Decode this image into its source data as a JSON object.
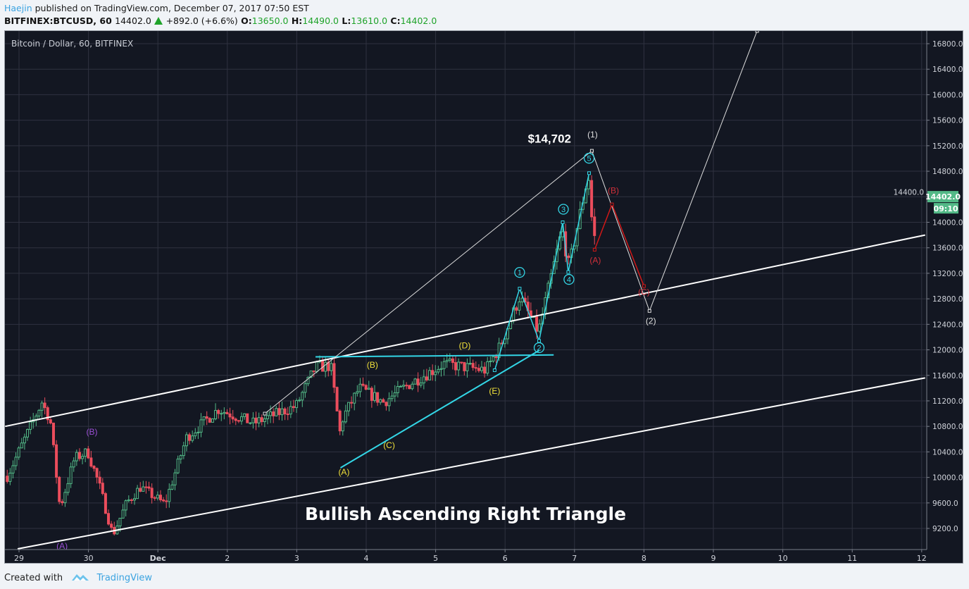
{
  "header": {
    "author": "Haejin",
    "published": " published on TradingView.com, December 07, 2017 07:50 EST",
    "symbol": "BITFINEX:BTCUSD, 60",
    "last": "14402.0",
    "change": "+892.0 (+6.6%)",
    "o_label": "O:",
    "o": "13650.0",
    "h_label": "H:",
    "h": "14490.0",
    "l_label": "L:",
    "l": "13610.0",
    "c_label": "C:",
    "c": "14402.0"
  },
  "footer": {
    "created": "Created with",
    "brand": "TradingView"
  },
  "colors": {
    "up": "#53b987",
    "down": "#eb4d5c",
    "bg": "#131722",
    "grid": "#2f3240",
    "cyan": "#33d6e6",
    "yellow": "#f0e03a",
    "purple": "#9b4fd6",
    "red": "#d01818",
    "price_tag": "#53b987"
  },
  "chart_data": {
    "type": "candlestick",
    "title": "Bitcoin / Dollar, 60, BITFINEX",
    "annotation_title": "Bullish Ascending Right Triangle",
    "ylim": [
      8900,
      17000
    ],
    "xlim_days": [
      -0.2,
      13.05
    ],
    "y_ticks": [
      "16800.0",
      "16400.0",
      "16000.0",
      "15600.0",
      "15200.0",
      "14800.0",
      "14400.0",
      "14000.0",
      "13600.0",
      "13200.0",
      "12800.0",
      "12400.0",
      "12000.0",
      "11600.0",
      "11200.0",
      "10800.0",
      "10400.0",
      "10000.0",
      "9600.0",
      "9200.0"
    ],
    "x_ticks": [
      {
        "d": 0,
        "label": "29"
      },
      {
        "d": 1,
        "label": "30"
      },
      {
        "d": 2,
        "label": "Dec"
      },
      {
        "d": 3,
        "label": "2"
      },
      {
        "d": 4,
        "label": "3"
      },
      {
        "d": 5,
        "label": "4"
      },
      {
        "d": 6,
        "label": "5"
      },
      {
        "d": 7,
        "label": "6"
      },
      {
        "d": 8,
        "label": "7"
      },
      {
        "d": 9,
        "label": "8"
      },
      {
        "d": 10,
        "label": "9"
      },
      {
        "d": 11,
        "label": "10"
      },
      {
        "d": 12,
        "label": "11"
      },
      {
        "d": 13,
        "label": "12"
      }
    ],
    "last_price": "14402.0",
    "countdown": "09:10",
    "price_path": [
      [
        -0.17,
        10020
      ],
      [
        0.33,
        11180
      ],
      [
        0.45,
        10900
      ],
      [
        0.59,
        9520
      ],
      [
        0.8,
        10300
      ],
      [
        0.99,
        10400
      ],
      [
        1.15,
        9900
      ],
      [
        1.35,
        9100
      ],
      [
        1.55,
        9600
      ],
      [
        1.75,
        9850
      ],
      [
        2.1,
        9580
      ],
      [
        2.41,
        10620
      ],
      [
        2.87,
        11070
      ],
      [
        3.38,
        10850
      ],
      [
        3.99,
        11120
      ],
      [
        4.27,
        11730
      ],
      [
        4.49,
        11750
      ],
      [
        4.62,
        10700
      ],
      [
        4.67,
        10950
      ],
      [
        4.9,
        11400
      ],
      [
        5.25,
        11180
      ],
      [
        5.6,
        11450
      ],
      [
        6.12,
        11780
      ],
      [
        6.72,
        11680
      ],
      [
        6.93,
        12060
      ],
      [
        7.21,
        12830
      ],
      [
        7.48,
        12280
      ],
      [
        7.82,
        13880
      ],
      [
        7.92,
        13300
      ],
      [
        8.2,
        14760
      ],
      [
        8.28,
        13600
      ],
      [
        8.32,
        14380
      ]
    ],
    "lines": [
      {
        "name": "upper-channel",
        "color": "#ffffff",
        "w": 2,
        "pts": [
          [
            -0.2,
            10800
          ],
          [
            13.05,
            13800
          ]
        ]
      },
      {
        "name": "lower-channel",
        "color": "#ffffff",
        "w": 2,
        "pts": [
          [
            -0.02,
            8880
          ],
          [
            13.05,
            11560
          ]
        ]
      },
      {
        "name": "triangle-top",
        "color": "#33d6e6",
        "w": 2,
        "pts": [
          [
            4.27,
            11890
          ],
          [
            7.7,
            11920
          ]
        ]
      },
      {
        "name": "triangle-support",
        "color": "#33d6e6",
        "w": 2,
        "pts": [
          [
            4.63,
            10150
          ],
          [
            7.49,
            11990
          ]
        ]
      },
      {
        "name": "wave-i-line",
        "color": "#dddddd",
        "w": 1,
        "pts": [
          [
            3.54,
            11000
          ],
          [
            8.25,
            15120
          ]
        ]
      },
      {
        "name": "wave-i-ii-projection",
        "color": "#dddddd",
        "w": 1,
        "pts": [
          [
            8.25,
            15120
          ],
          [
            9.08,
            12610
          ],
          [
            10.63,
            17000
          ]
        ]
      },
      {
        "name": "abc-correction",
        "color": "#d01818",
        "w": 1.5,
        "pts": [
          [
            8.29,
            13570
          ],
          [
            8.54,
            14280
          ],
          [
            9.0,
            13000
          ]
        ]
      },
      {
        "name": "impulse-waves",
        "color": "#33d6e6",
        "w": 1.5,
        "pts": [
          [
            6.85,
            11680
          ],
          [
            7.21,
            12960
          ],
          [
            7.49,
            12140
          ],
          [
            7.83,
            14000
          ],
          [
            7.91,
            13220
          ],
          [
            8.21,
            14770
          ]
        ]
      }
    ],
    "labels": [
      {
        "t": "$14,702",
        "d": 7.64,
        "p": 15250,
        "c": "#ffffff",
        "s": 17,
        "b": true
      },
      {
        "t": "(1)",
        "d": 8.26,
        "p": 15330,
        "c": "#e0e0e0",
        "s": 12
      },
      {
        "t": "5",
        "d": 8.21,
        "p": 14960,
        "c": "#33d6e6",
        "s": 11,
        "circle": true
      },
      {
        "t": "(B)",
        "d": 8.56,
        "p": 14450,
        "c": "#d0303a",
        "s": 12
      },
      {
        "t": "(A)",
        "d": 8.3,
        "p": 13360,
        "c": "#d0303a",
        "s": 12
      },
      {
        "t": "(C)",
        "d": 9.0,
        "p": 12860,
        "c": "#d0303a",
        "s": 12
      },
      {
        "t": "(2)",
        "d": 9.1,
        "p": 12410,
        "c": "#e0e0e0",
        "s": 12
      },
      {
        "t": "3",
        "d": 7.84,
        "p": 14160,
        "c": "#33d6e6",
        "s": 11,
        "circle": true
      },
      {
        "t": "4",
        "d": 7.92,
        "p": 13060,
        "c": "#33d6e6",
        "s": 11,
        "circle": true
      },
      {
        "t": "1",
        "d": 7.21,
        "p": 13170,
        "c": "#33d6e6",
        "s": 11,
        "circle": true
      },
      {
        "t": "2",
        "d": 7.49,
        "p": 11990,
        "c": "#33d6e6",
        "s": 11,
        "circle": true
      },
      {
        "t": "(D)",
        "d": 6.42,
        "p": 12020,
        "c": "#f0e03a",
        "s": 12
      },
      {
        "t": "(B)",
        "d": 5.09,
        "p": 11720,
        "c": "#f0e03a",
        "s": 12
      },
      {
        "t": "(E)",
        "d": 6.85,
        "p": 11310,
        "c": "#f0e03a",
        "s": 12
      },
      {
        "t": "(C)",
        "d": 5.33,
        "p": 10460,
        "c": "#f0e03a",
        "s": 12
      },
      {
        "t": "(A)",
        "d": 4.68,
        "p": 10040,
        "c": "#f0e03a",
        "s": 12
      },
      {
        "t": "(B)",
        "d": 1.05,
        "p": 10670,
        "c": "#9b4fd6",
        "s": 12
      },
      {
        "t": "(A)",
        "d": 0.62,
        "p": 8880,
        "c": "#9b4fd6",
        "s": 12
      }
    ]
  }
}
